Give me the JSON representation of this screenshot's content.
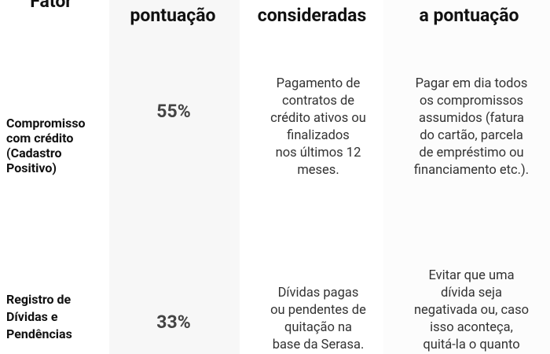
{
  "table": {
    "header": [
      "Fator",
      "pontuação",
      "consideradas",
      "a pontuação"
    ],
    "rows": [
      {
        "fator": [
          "Compromisso",
          "com crédito",
          "(Cadastro",
          "Positivo)"
        ],
        "peso": "55%",
        "info": [
          "Pagamento de",
          "contratos de",
          "crédito ativos ou",
          "finalizados",
          "nos últimos 12",
          "meses."
        ],
        "dica": [
          "Pagar em dia todos",
          "os compromissos",
          "assumidos (fatura",
          "do cartão, parcela",
          "de empréstimo ou",
          "financiamento etc.)."
        ]
      },
      {
        "fator": [
          "Registro de",
          "Dívidas e",
          "Pendências"
        ],
        "peso": "33%",
        "info": [
          "Dívidas pagas",
          "ou pendentes de",
          "quitação na",
          "base da Serasa."
        ],
        "dica": [
          "Evitar que uma",
          "dívida seja",
          "negativada ou, caso",
          "isso aconteça,",
          "quitá-la o quanto"
        ]
      }
    ]
  }
}
